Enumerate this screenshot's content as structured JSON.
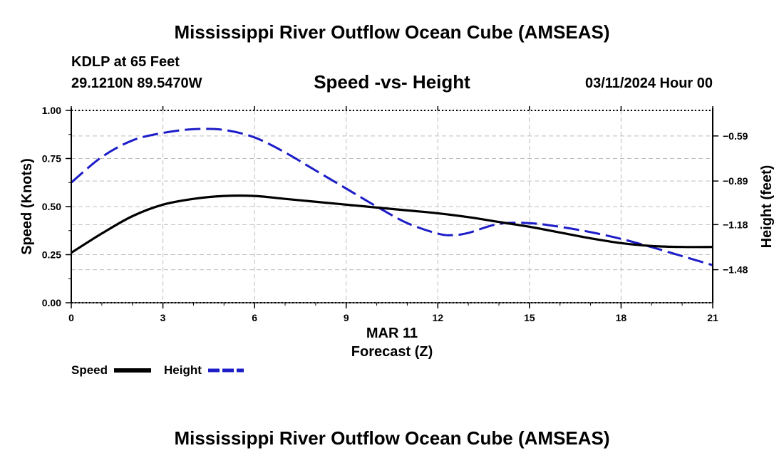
{
  "header": {
    "title": "Mississippi River Outflow Ocean Cube (AMSEAS)",
    "station": "KDLP at 65 Feet",
    "coords": "29.1210N  89.5470W",
    "subtitle": "Speed -vs- Height",
    "datetime": "03/11/2024 Hour 00"
  },
  "footer": {
    "title": "Mississippi River Outflow Ocean Cube (AMSEAS)"
  },
  "chart_data": {
    "type": "line",
    "title": "Speed -vs- Height",
    "xlabel": "Forecast (Z)",
    "xdate_label": "MAR 11",
    "ylabel": "Speed (Knots)",
    "y2label": "Height (feet)",
    "xlim": [
      0,
      21
    ],
    "ylim": [
      0,
      1
    ],
    "y2lim": [
      -1.7,
      -0.42
    ],
    "x_ticks": [
      "0",
      "3",
      "6",
      "9",
      "12",
      "15",
      "18",
      "21"
    ],
    "y_ticks": [
      "0.00",
      "0.25",
      "0.50",
      "0.75",
      "1.00"
    ],
    "y2_ticks": [
      -0.59,
      -0.89,
      -1.18,
      -1.48
    ],
    "y2_tick_labels": [
      "−0.59",
      "−0.89",
      "−1.18",
      "−1.48"
    ],
    "grid": true,
    "series": [
      {
        "name": "Speed",
        "axis": "left",
        "color": "#000000",
        "style": "solid",
        "x": [
          0,
          1,
          2,
          3,
          4,
          5,
          6,
          7,
          8,
          9,
          10,
          11,
          12,
          13,
          14,
          15,
          16,
          17,
          18,
          19,
          20,
          21
        ],
        "values": [
          0.26,
          0.36,
          0.45,
          0.51,
          0.54,
          0.555,
          0.555,
          0.54,
          0.525,
          0.51,
          0.495,
          0.48,
          0.465,
          0.445,
          0.42,
          0.395,
          0.365,
          0.335,
          0.31,
          0.295,
          0.29,
          0.29
        ]
      },
      {
        "name": "Height",
        "axis": "right",
        "color": "#1c1cc8",
        "style": "dashed",
        "x": [
          0,
          1,
          2,
          3,
          4,
          5,
          6,
          7,
          8,
          9,
          10,
          11,
          12,
          12.5,
          13,
          14,
          15,
          16,
          17,
          18,
          19,
          20,
          21
        ],
        "values": [
          -0.9,
          -0.73,
          -0.62,
          -0.57,
          -0.545,
          -0.55,
          -0.6,
          -0.7,
          -0.82,
          -0.94,
          -1.06,
          -1.17,
          -1.24,
          -1.25,
          -1.235,
          -1.175,
          -1.17,
          -1.195,
          -1.23,
          -1.275,
          -1.33,
          -1.39,
          -1.45
        ]
      }
    ],
    "legend": {
      "position": "bottom-left",
      "entries": [
        "Speed",
        "Height"
      ]
    }
  }
}
